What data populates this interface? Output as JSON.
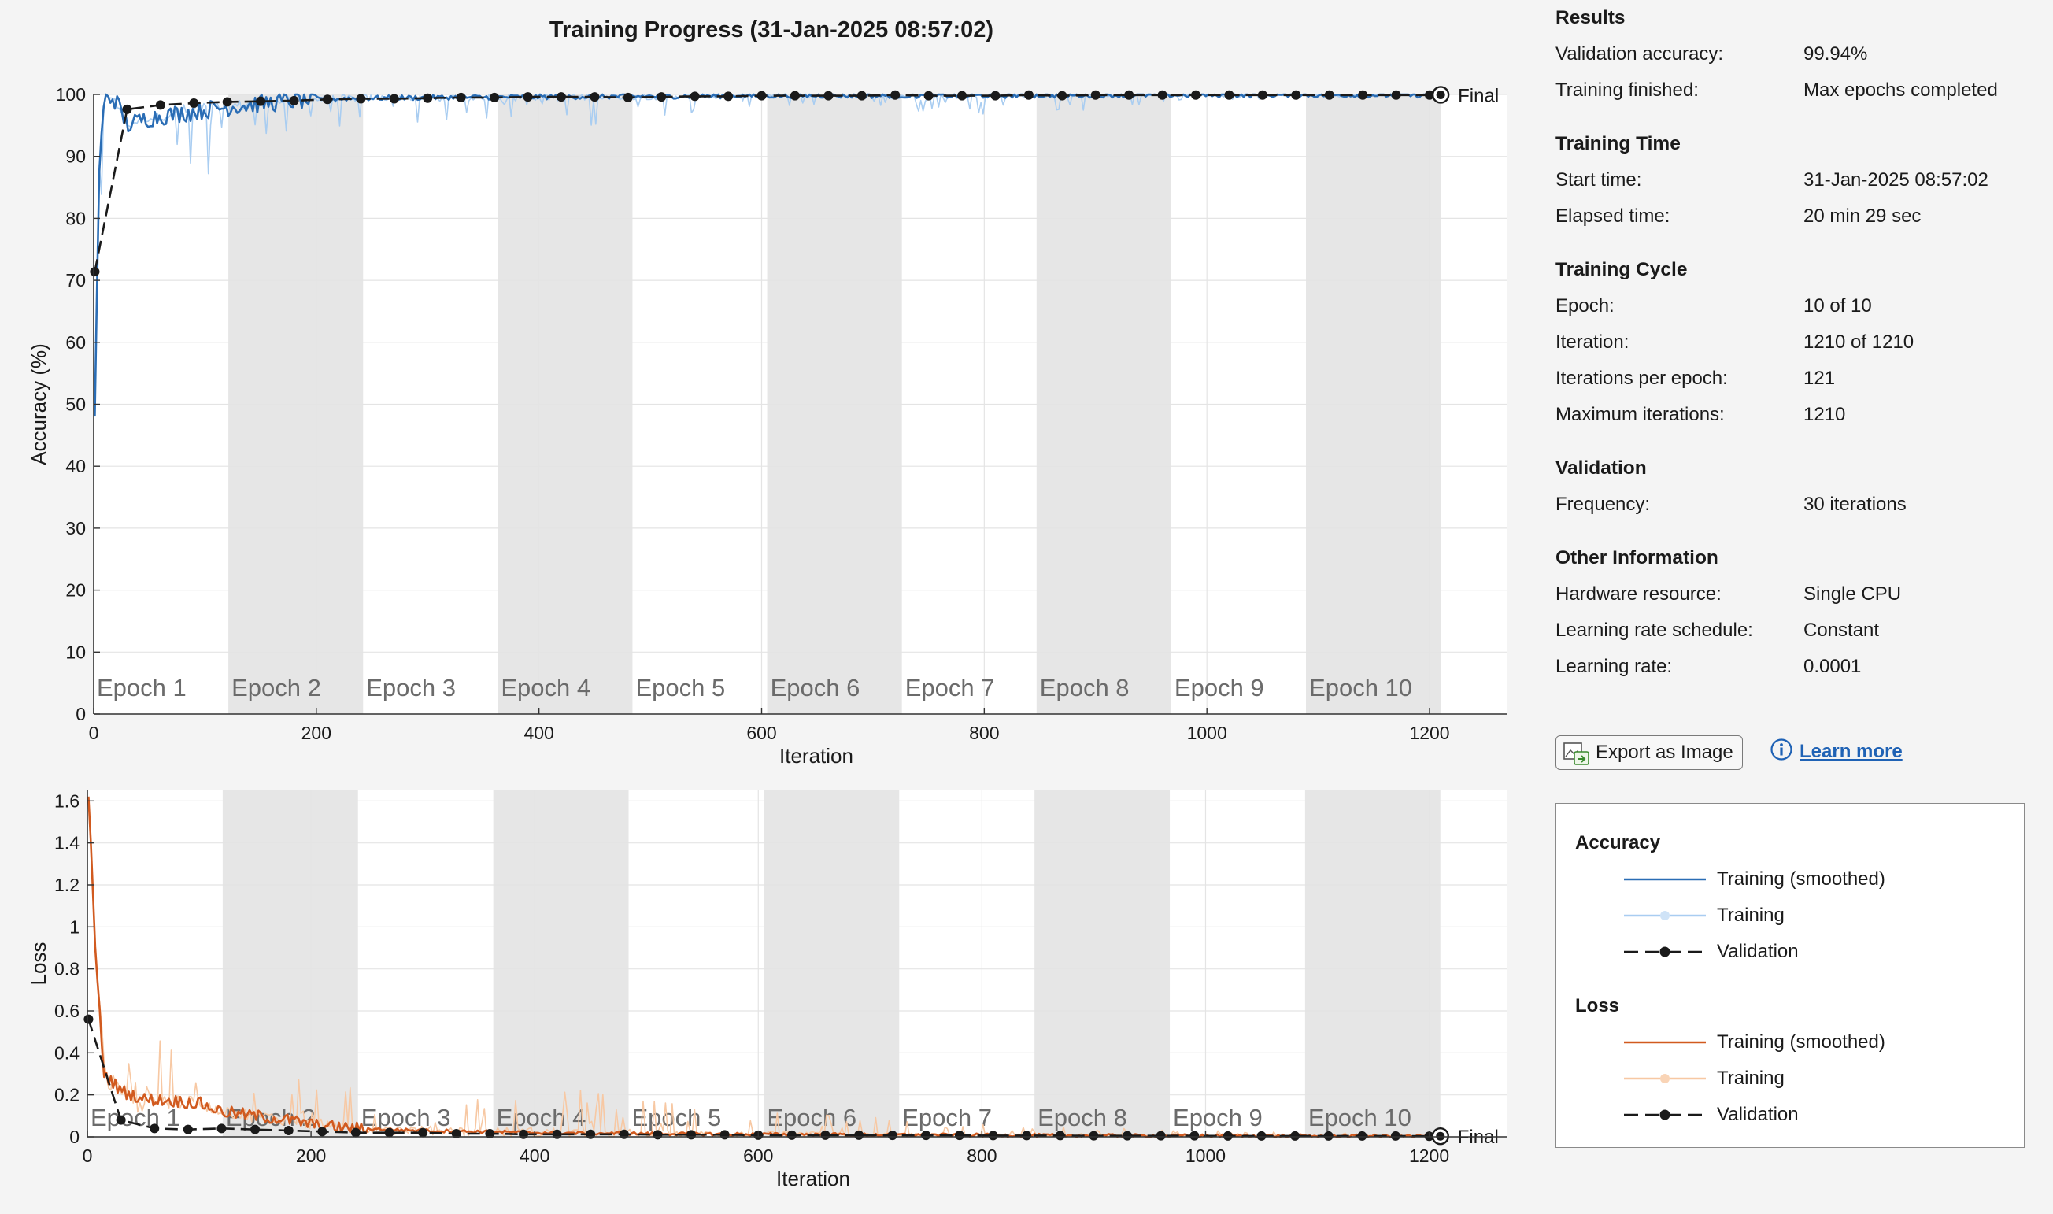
{
  "title": "Training Progress (31-Jan-2025 08:57:02)",
  "accuracy_plot": {
    "ylabel": "Accuracy (%)",
    "xlabel": "Iteration",
    "ylim": [
      0,
      100
    ],
    "xlim": [
      0,
      1270
    ],
    "yticks": [
      "0",
      "10",
      "20",
      "30",
      "40",
      "50",
      "60",
      "70",
      "80",
      "90",
      "100"
    ],
    "xticks": [
      "0",
      "200",
      "400",
      "600",
      "800",
      "1000",
      "1200"
    ],
    "final_label": "Final"
  },
  "loss_plot": {
    "ylabel": "Loss",
    "xlabel": "Iteration",
    "ylim": [
      0,
      1.65
    ],
    "xlim": [
      0,
      1270
    ],
    "yticks": [
      "0",
      "0.2",
      "0.4",
      "0.6",
      "0.8",
      "1",
      "1.2",
      "1.4",
      "1.6"
    ],
    "xticks": [
      "0",
      "200",
      "400",
      "600",
      "800",
      "1000",
      "1200"
    ],
    "final_label": "Final"
  },
  "epochs": [
    "Epoch 1",
    "Epoch 2",
    "Epoch 3",
    "Epoch 4",
    "Epoch 5",
    "Epoch 6",
    "Epoch 7",
    "Epoch 8",
    "Epoch 9",
    "Epoch 10"
  ],
  "chart_data": [
    {
      "type": "line",
      "title": "",
      "xlabel": "Iteration",
      "ylabel": "Accuracy (%)",
      "ylim": [
        0,
        100
      ],
      "xlim": [
        0,
        1270
      ],
      "grid": true,
      "series": [
        {
          "name": "Validation",
          "x": [
            1,
            30,
            60,
            90,
            120,
            150,
            180,
            210,
            240,
            270,
            300,
            330,
            360,
            390,
            420,
            450,
            480,
            510,
            540,
            570,
            600,
            630,
            660,
            690,
            720,
            750,
            780,
            810,
            840,
            870,
            900,
            930,
            960,
            990,
            1020,
            1050,
            1080,
            1110,
            1140,
            1170,
            1200,
            1210
          ],
          "values": [
            71.4,
            97.6,
            98.3,
            98.6,
            98.8,
            98.9,
            99.0,
            99.2,
            99.3,
            99.3,
            99.4,
            99.5,
            99.5,
            99.6,
            99.6,
            99.6,
            99.5,
            99.6,
            99.7,
            99.7,
            99.8,
            99.8,
            99.8,
            99.8,
            99.9,
            99.8,
            99.8,
            99.8,
            99.9,
            99.8,
            99.9,
            99.9,
            99.9,
            99.9,
            99.9,
            99.9,
            99.9,
            99.9,
            99.9,
            99.9,
            99.9,
            99.94
          ]
        },
        {
          "name": "Training (smoothed)",
          "x": [
            1,
            5,
            10,
            20,
            30,
            45,
            60,
            80,
            100,
            120,
            150,
            180,
            200,
            240,
            300,
            400,
            500,
            600,
            700,
            800,
            900,
            1000,
            1100,
            1210
          ],
          "values": [
            48,
            88,
            100,
            99,
            95,
            96,
            96.5,
            97,
            97.5,
            98,
            98.5,
            99,
            99.2,
            99.4,
            99.5,
            99.6,
            99.7,
            99.8,
            99.8,
            99.8,
            99.9,
            99.9,
            99.9,
            99.9
          ]
        },
        {
          "name": "Training",
          "x": [
            1,
            10,
            40,
            70,
            85,
            150,
            250,
            330,
            440,
            560,
            700,
            790,
            880,
            1000,
            1210
          ],
          "values": [
            48,
            100,
            92,
            90,
            84,
            93,
            95,
            96,
            94,
            97,
            98,
            96,
            97,
            99,
            100
          ]
        }
      ]
    },
    {
      "type": "line",
      "title": "",
      "xlabel": "Iteration",
      "ylabel": "Loss",
      "ylim": [
        0,
        1.65
      ],
      "xlim": [
        0,
        1270
      ],
      "grid": true,
      "series": [
        {
          "name": "Validation",
          "x": [
            1,
            30,
            60,
            90,
            120,
            150,
            180,
            210,
            240,
            270,
            300,
            330,
            360,
            390,
            420,
            450,
            480,
            510,
            540,
            570,
            600,
            630,
            660,
            690,
            720,
            750,
            780,
            810,
            840,
            870,
            900,
            930,
            960,
            990,
            1020,
            1050,
            1080,
            1110,
            1140,
            1170,
            1200,
            1210
          ],
          "values": [
            0.56,
            0.08,
            0.04,
            0.035,
            0.04,
            0.035,
            0.03,
            0.025,
            0.02,
            0.02,
            0.02,
            0.015,
            0.015,
            0.012,
            0.012,
            0.012,
            0.012,
            0.01,
            0.01,
            0.01,
            0.008,
            0.008,
            0.008,
            0.008,
            0.007,
            0.007,
            0.007,
            0.006,
            0.006,
            0.006,
            0.005,
            0.005,
            0.005,
            0.005,
            0.004,
            0.004,
            0.004,
            0.004,
            0.004,
            0.004,
            0.003,
            0.003
          ]
        },
        {
          "name": "Training (smoothed)",
          "x": [
            1,
            3,
            8,
            15,
            30,
            50,
            80,
            100,
            120,
            150,
            180,
            210,
            240,
            300,
            400,
            500,
            600,
            700,
            800,
            900,
            1000,
            1100,
            1210
          ],
          "values": [
            1.6,
            1.4,
            0.8,
            0.3,
            0.22,
            0.18,
            0.17,
            0.16,
            0.12,
            0.1,
            0.08,
            0.05,
            0.04,
            0.03,
            0.02,
            0.015,
            0.012,
            0.01,
            0.008,
            0.006,
            0.005,
            0.004,
            0.003
          ]
        },
        {
          "name": "Training",
          "x": [
            1,
            30,
            40,
            60,
            90,
            120,
            150,
            220,
            260,
            340,
            420,
            540,
            700,
            800,
            1000,
            1210
          ],
          "values": [
            1.6,
            0.4,
            0.85,
            0.6,
            0.4,
            0.3,
            0.35,
            0.25,
            0.22,
            0.2,
            0.24,
            0.15,
            0.1,
            0.06,
            0.03,
            0.01
          ]
        }
      ]
    }
  ],
  "info": {
    "results_title": "Results",
    "validation_accuracy_label": "Validation accuracy:",
    "validation_accuracy_value": "99.94%",
    "training_finished_label": "Training finished:",
    "training_finished_value": "Max epochs completed",
    "training_time_title": "Training Time",
    "start_time_label": "Start time:",
    "start_time_value": "31-Jan-2025 08:57:02",
    "elapsed_time_label": "Elapsed time:",
    "elapsed_time_value": "20 min 29 sec",
    "training_cycle_title": "Training Cycle",
    "epoch_label": "Epoch:",
    "epoch_value": "10 of 10",
    "iteration_label": "Iteration:",
    "iteration_value": "1210 of 1210",
    "iterations_per_epoch_label": "Iterations per epoch:",
    "iterations_per_epoch_value": "121",
    "max_iterations_label": "Maximum iterations:",
    "max_iterations_value": "1210",
    "validation_title": "Validation",
    "frequency_label": "Frequency:",
    "frequency_value": "30 iterations",
    "other_title": "Other Information",
    "hardware_label": "Hardware resource:",
    "hardware_value": "Single CPU",
    "lr_schedule_label": "Learning rate schedule:",
    "lr_schedule_value": "Constant",
    "lr_label": "Learning rate:",
    "lr_value": "0.0001"
  },
  "buttons": {
    "export_label": "Export as Image",
    "learn_more_label": "Learn more"
  },
  "legend": {
    "accuracy_title": "Accuracy",
    "loss_title": "Loss",
    "training_smoothed": "Training (smoothed)",
    "training": "Training",
    "validation": "Validation"
  },
  "colors": {
    "acc_smoothed": "#2a6db5",
    "acc_raw": "#a9cdf1",
    "loss_smoothed": "#d15a1f",
    "loss_raw": "#f7c8a3",
    "validation": "#1a1a1a",
    "epoch_shade": "#e6e6e6",
    "grid": "#e4e4e4",
    "link": "#1f62b5"
  }
}
